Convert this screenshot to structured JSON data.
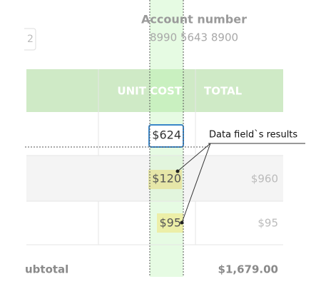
{
  "account": {
    "label": "Account number",
    "value": "8990 5643 8900"
  },
  "input_fragment": "2",
  "table": {
    "headers": [
      "UNIT COST",
      "TOTAL"
    ],
    "rows": [
      {
        "unit_cost": "$624"
      },
      {
        "unit_cost": "$120",
        "total": "$960"
      },
      {
        "unit_cost": "$95",
        "total": "$95"
      }
    ],
    "subtotal": {
      "label": "ubtotal",
      "value": "$1,679.00"
    }
  },
  "annotation": "Data field`s results"
}
